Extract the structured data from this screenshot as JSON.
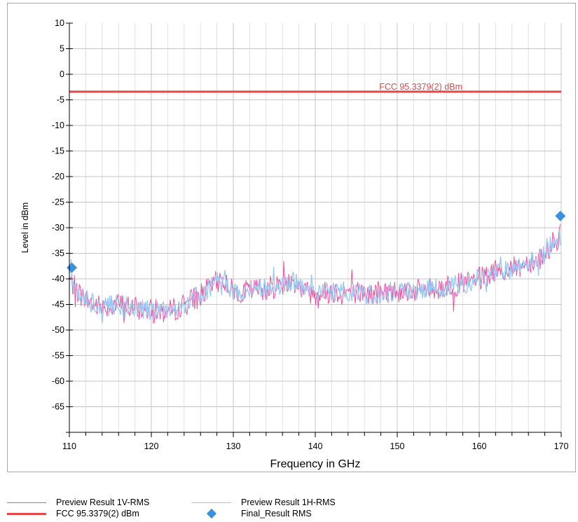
{
  "chart_data": {
    "type": "line",
    "xlabel": "Frequency in GHz",
    "ylabel": "Level in dBm",
    "xlim": [
      110,
      170
    ],
    "ylim": [
      -70,
      10
    ],
    "x_ticks": [
      110,
      120,
      130,
      140,
      150,
      160,
      170
    ],
    "y_ticks": [
      10,
      5,
      0,
      -5,
      -10,
      -15,
      -20,
      -25,
      -30,
      -35,
      -40,
      -45,
      -50,
      -55,
      -60,
      -65
    ],
    "grid": true,
    "limit_line": {
      "name": "FCC 95.3379(2) dBm",
      "label": "FCC 95.3379(2) dBm",
      "value": -3.4,
      "color": "#e8474a"
    },
    "series": [
      {
        "name": "Preview Result 1V-RMS",
        "color": "#f0509a",
        "x": [
          110,
          111,
          112,
          113,
          114,
          115,
          116,
          117,
          118,
          119,
          120,
          121,
          122,
          123,
          124,
          125,
          126,
          127,
          128,
          128.7,
          129.5,
          130,
          131,
          132,
          133,
          134,
          135,
          136,
          137,
          137.5,
          138,
          139,
          140,
          141,
          142,
          143,
          144,
          145,
          146,
          147,
          148,
          149,
          150,
          151,
          152,
          153,
          154,
          155,
          156,
          157,
          158,
          159,
          160,
          161,
          162,
          163,
          164,
          165,
          166,
          167,
          168,
          169,
          170
        ],
        "values": [
          -40,
          -42.5,
          -44,
          -45,
          -45.5,
          -45.2,
          -45,
          -45.3,
          -45.8,
          -46,
          -46.2,
          -46.3,
          -46.5,
          -45.8,
          -45,
          -44,
          -43,
          -42,
          -40.5,
          -40,
          -41.5,
          -42.5,
          -42.5,
          -42.3,
          -42,
          -41.8,
          -41.5,
          -41,
          -40.5,
          -40.5,
          -41.5,
          -42.5,
          -42.8,
          -42.7,
          -42.5,
          -42.5,
          -42.5,
          -42.5,
          -43,
          -43,
          -42.7,
          -42.5,
          -42.3,
          -42.3,
          -42.3,
          -42.2,
          -42,
          -41.8,
          -41.5,
          -41.2,
          -41,
          -40.5,
          -40,
          -39.5,
          -39,
          -38.5,
          -38,
          -37.5,
          -36.5,
          -36.5,
          -35,
          -33,
          -31.5
        ]
      },
      {
        "name": "Preview Result 1H-RMS",
        "color": "#99c8f7",
        "x": [
          110,
          111,
          112,
          113,
          114,
          115,
          116,
          117,
          118,
          119,
          120,
          121,
          122,
          123,
          124,
          125,
          126,
          127,
          128,
          128.7,
          129.5,
          130,
          131,
          132,
          133,
          134,
          135,
          136,
          137,
          137.5,
          138,
          139,
          140,
          141,
          142,
          143,
          144,
          145,
          146,
          147,
          148,
          149,
          150,
          151,
          152,
          153,
          154,
          155,
          156,
          157,
          158,
          159,
          160,
          161,
          162,
          163,
          164,
          165,
          166,
          167,
          168,
          169,
          170
        ],
        "values": [
          -40,
          -42.5,
          -44,
          -45,
          -45.5,
          -45.2,
          -45,
          -45.3,
          -45.8,
          -46,
          -46.2,
          -46.3,
          -46.5,
          -45.8,
          -45,
          -44,
          -43,
          -42,
          -40.5,
          -40,
          -41.5,
          -42.5,
          -42.5,
          -42.3,
          -42,
          -41.8,
          -41.5,
          -41,
          -40.5,
          -40.5,
          -41.5,
          -42.5,
          -42.8,
          -42.7,
          -42.5,
          -42.5,
          -42.5,
          -42.5,
          -43,
          -43,
          -42.7,
          -42.5,
          -42.3,
          -42.3,
          -42.3,
          -42.2,
          -42,
          -41.8,
          -41.5,
          -41.2,
          -41,
          -40.5,
          -40,
          -39.5,
          -39,
          -38.5,
          -38,
          -37.5,
          -36.5,
          -36.5,
          -35,
          -33,
          -31.5
        ]
      },
      {
        "name": "Final_Result RMS",
        "color": "#3d91dc",
        "marker": "diamond",
        "x": [
          110.3,
          169.9
        ],
        "values": [
          -37.8,
          -27.7
        ]
      }
    ],
    "legend": {
      "placement": "bottom",
      "items": [
        {
          "label": "Preview Result 1V-RMS",
          "symbol": "thin-line",
          "color": "#f0509a"
        },
        {
          "label": "Preview Result 1H-RMS",
          "symbol": "thin-line",
          "color": "#99c8f7"
        },
        {
          "label": "FCC 95.3379(2) dBm",
          "symbol": "thick-line",
          "color": "#e8474a"
        },
        {
          "label": "Final_Result RMS",
          "symbol": "diamond",
          "color": "#3d91dc"
        }
      ]
    }
  }
}
